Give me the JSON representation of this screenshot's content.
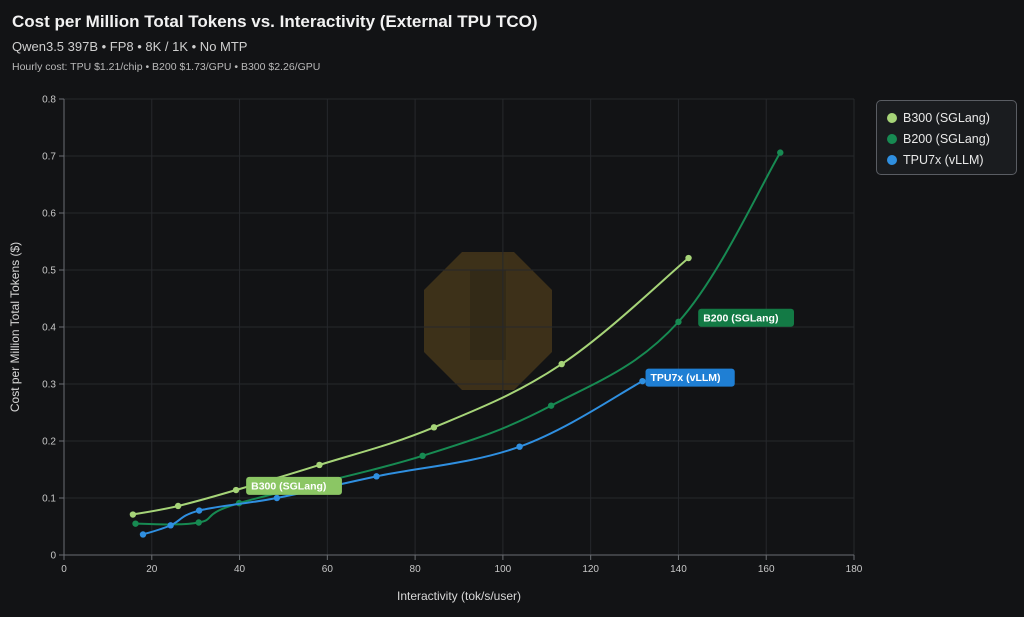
{
  "header": {
    "title": "Cost per Million Total Tokens vs. Interactivity (External TPU TCO)",
    "subtitle": "Qwen3.5 397B • FP8 • 8K / 1K • No MTP",
    "note": "Hourly cost: TPU $1.21/chip • B200 $1.73/GPU • B300 $2.26/GPU"
  },
  "chart_data": {
    "type": "line",
    "xlabel": "Interactivity (tok/s/user)",
    "ylabel": "Cost per Million Total Tokens ($)",
    "xlim": [
      0,
      180
    ],
    "ylim": [
      0,
      0.8
    ],
    "x_ticks": [
      "0",
      "20",
      "40",
      "60",
      "80",
      "100",
      "120",
      "140",
      "160",
      "180"
    ],
    "y_ticks": [
      "0",
      "0.1",
      "0.2",
      "0.3",
      "0.4",
      "0.5",
      "0.6",
      "0.7",
      "0.8"
    ],
    "grid": true,
    "legend_position": "top-right (outside plot)",
    "series": [
      {
        "name": "B300 (SGLang)",
        "color": "#a6d478",
        "label_color": "#8bc664",
        "x": [
          15.7,
          26.0,
          39.2,
          58.2,
          84.3,
          113.4,
          142.3
        ],
        "y": [
          0.071,
          0.086,
          0.114,
          0.158,
          0.224,
          0.335,
          0.521
        ]
      },
      {
        "name": "B200 (SGLang)",
        "color": "#178a52",
        "label_color": "#137a45",
        "x": [
          16.3,
          30.7,
          39.9,
          81.7,
          111.0,
          140.0,
          163.2
        ],
        "y": [
          0.055,
          0.057,
          0.091,
          0.174,
          0.262,
          0.409,
          0.706
        ]
      },
      {
        "name": "TPU7x (vLLM)",
        "color": "#2f8fe0",
        "label_color": "#1f7fd4",
        "x": [
          18.0,
          24.3,
          30.8,
          48.5,
          71.2,
          103.8,
          131.8
        ],
        "y": [
          0.036,
          0.052,
          0.078,
          0.1,
          0.138,
          0.19,
          0.305
        ]
      }
    ]
  }
}
